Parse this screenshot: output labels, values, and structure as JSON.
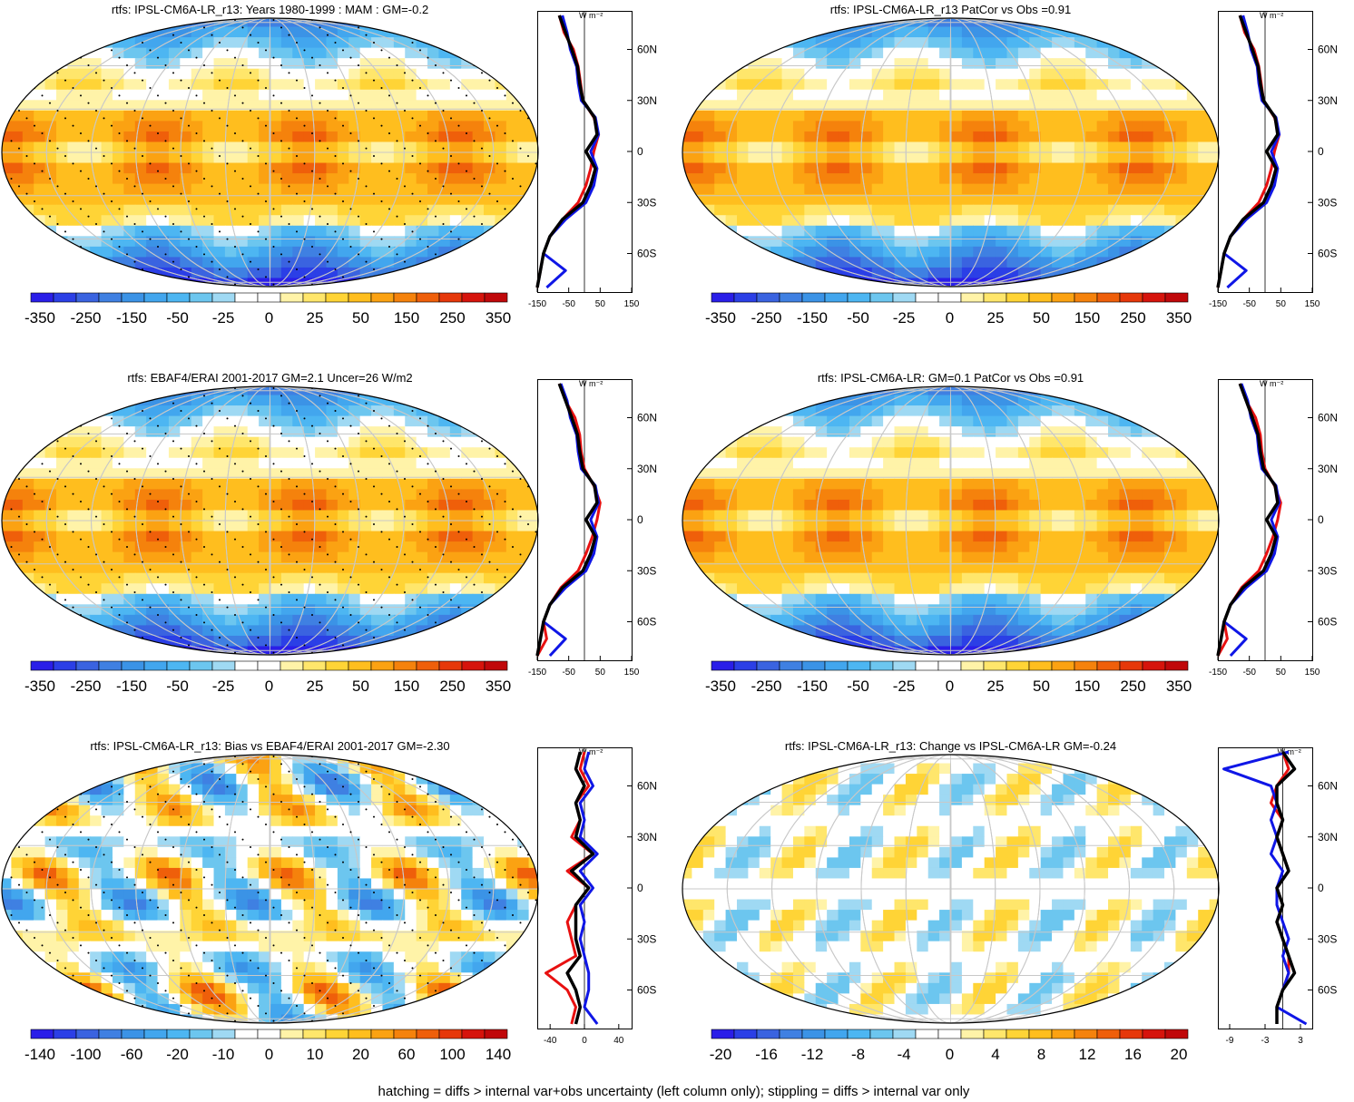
{
  "panels": [
    {
      "title": "rtfs: IPSL-CM6A-LR_r13: Years 1980-1999 : MAM : GM=-0.2",
      "colorbar_labels": [
        "-350",
        "-250",
        "-150",
        "-50",
        "-25",
        "0",
        "25",
        "50",
        "150",
        "250",
        "350"
      ],
      "zonal_xticks": [
        "-150",
        "-50",
        "50",
        "150"
      ],
      "zonal_xlim": [
        -150,
        150
      ],
      "hatched": true
    },
    {
      "title": "rtfs: IPSL-CM6A-LR_r13 PatCor vs Obs =0.91",
      "colorbar_labels": [
        "-350",
        "-250",
        "-150",
        "-50",
        "-25",
        "0",
        "25",
        "50",
        "150",
        "250",
        "350"
      ],
      "zonal_xticks": [
        "-150",
        "-50",
        "50",
        "150"
      ],
      "zonal_xlim": [
        -150,
        150
      ],
      "hatched": false
    },
    {
      "title": "rtfs: EBAF4/ERAI 2001-2017 GM=2.1 Uncer=26 W/m2",
      "colorbar_labels": [
        "-350",
        "-250",
        "-150",
        "-50",
        "-25",
        "0",
        "25",
        "50",
        "150",
        "250",
        "350"
      ],
      "zonal_xticks": [
        "-150",
        "-50",
        "50",
        "150"
      ],
      "zonal_xlim": [
        -150,
        150
      ],
      "hatched": true
    },
    {
      "title": "rtfs: IPSL-CM6A-LR: GM=0.1 PatCor vs Obs =0.91",
      "colorbar_labels": [
        "-350",
        "-250",
        "-150",
        "-50",
        "-25",
        "0",
        "25",
        "50",
        "150",
        "250",
        "350"
      ],
      "zonal_xticks": [
        "-150",
        "-50",
        "50",
        "150"
      ],
      "zonal_xlim": [
        -150,
        150
      ],
      "hatched": false
    },
    {
      "title": "rtfs: IPSL-CM6A-LR_r13: Bias vs EBAF4/ERAI 2001-2017 GM=-2.30",
      "colorbar_labels": [
        "-140",
        "-100",
        "-60",
        "-20",
        "-10",
        "0",
        "10",
        "20",
        "60",
        "100",
        "140"
      ],
      "zonal_xticks": [
        "-40",
        "0",
        "40"
      ],
      "zonal_xlim": [
        -55,
        55
      ],
      "hatched": true
    },
    {
      "title": "rtfs: IPSL-CM6A-LR_r13: Change vs IPSL-CM6A-LR GM=-0.24",
      "colorbar_labels": [
        "-20",
        "-16",
        "-12",
        "-8",
        "-4",
        "0",
        "4",
        "8",
        "12",
        "16",
        "20"
      ],
      "zonal_xticks": [
        "-9",
        "-3",
        "3"
      ],
      "zonal_xlim": [
        -11,
        5
      ],
      "hatched": false
    }
  ],
  "zonal_units": "W m⁻²",
  "lat_labels": [
    "60N",
    "30N",
    "0",
    "30S",
    "60S"
  ],
  "palette": [
    "#2a1ee8",
    "#2b3fe6",
    "#3a63e0",
    "#3f80e2",
    "#3b93e6",
    "#42a6ee",
    "#4db6f2",
    "#6cc6ef",
    "#9fd9f3",
    "#ffffff",
    "#ffffff",
    "#fff3a8",
    "#ffe66b",
    "#ffd436",
    "#ffbe1e",
    "#fba212",
    "#f5820c",
    "#ef5f0a",
    "#e6380a",
    "#d6140c",
    "#c0080a"
  ],
  "series_colors": {
    "obs": "#e81010",
    "model": "#0f16e6",
    "ensemble": "#000000"
  },
  "footnote": "hatching = diffs > internal var+obs uncertainty (left column only); stippling = diffs > internal var only",
  "chart_data": [
    {
      "type": "heatmap",
      "title": "rtfs: IPSL-CM6A-LR_r13: Years 1980-1999 : MAM : GM=-0.2",
      "colorbar_ticks": [
        "-350",
        "-250",
        "-150",
        "-50",
        "-25",
        "0",
        "25",
        "50",
        "150",
        "250",
        "350"
      ],
      "zonal_mean": {
        "lat": [
          80,
          70,
          60,
          50,
          40,
          30,
          20,
          10,
          0,
          -10,
          -20,
          -30,
          -40,
          -50,
          -60,
          -70,
          -80
        ],
        "series": [
          {
            "values": [
              -80,
              -65,
              -35,
              -20,
              -12,
              -5,
              30,
              45,
              30,
              20,
              5,
              -20,
              -70,
              -110,
              -130,
              -140,
              -150
            ]
          },
          {
            "values": [
              -70,
              -55,
              -45,
              -25,
              -20,
              -10,
              35,
              45,
              20,
              40,
              30,
              5,
              -60,
              -110,
              -130,
              -60,
              -120
            ]
          },
          {
            "values": [
              -80,
              -60,
              -40,
              -22,
              -15,
              -5,
              32,
              40,
              5,
              35,
              20,
              -5,
              -70,
              -110,
              -130,
              -140,
              -150
            ]
          }
        ]
      }
    },
    {
      "type": "heatmap",
      "title": "rtfs: IPSL-CM6A-LR_r13 PatCor vs Obs =0.91",
      "colorbar_ticks": [
        "-350",
        "-250",
        "-150",
        "-50",
        "-25",
        "0",
        "25",
        "50",
        "150",
        "250",
        "350"
      ],
      "zonal_mean": {
        "lat": [
          80,
          70,
          60,
          50,
          40,
          30,
          20,
          10,
          0,
          -10,
          -20,
          -30,
          -40,
          -50,
          -60,
          -70,
          -80
        ],
        "series": [
          {
            "values": [
              -80,
              -65,
              -35,
              -20,
              -12,
              -5,
              30,
              45,
              30,
              20,
              5,
              -20,
              -70,
              -110,
              -130,
              -140,
              -150
            ]
          },
          {
            "values": [
              -70,
              -55,
              -45,
              -25,
              -20,
              -10,
              35,
              45,
              20,
              40,
              30,
              5,
              -60,
              -110,
              -130,
              -60,
              -120
            ]
          },
          {
            "values": [
              -80,
              -60,
              -40,
              -22,
              -15,
              -5,
              32,
              40,
              5,
              35,
              20,
              -5,
              -70,
              -110,
              -130,
              -140,
              -150
            ]
          }
        ]
      }
    },
    {
      "type": "heatmap",
      "title": "rtfs: EBAF4/ERAI 2001-2017 GM=2.1 Uncer=26 W/m2",
      "colorbar_ticks": [
        "-350",
        "-250",
        "-150",
        "-50",
        "-25",
        "0",
        "25",
        "50",
        "150",
        "250",
        "350"
      ],
      "zonal_mean": {
        "lat": [
          80,
          70,
          60,
          50,
          40,
          30,
          20,
          10,
          0,
          -10,
          -20,
          -30,
          -40,
          -50,
          -60,
          -70,
          -80
        ],
        "series": [
          {
            "values": [
              -80,
              -60,
              -30,
              -15,
              -10,
              0,
              30,
              50,
              40,
              25,
              5,
              -20,
              -75,
              -110,
              -130,
              -120,
              -150
            ]
          },
          {
            "values": [
              -75,
              -55,
              -45,
              -25,
              -20,
              -10,
              35,
              45,
              20,
              40,
              30,
              5,
              -60,
              -110,
              -130,
              -60,
              -110
            ]
          },
          {
            "values": [
              -80,
              -60,
              -40,
              -22,
              -15,
              -5,
              32,
              40,
              5,
              35,
              20,
              -5,
              -70,
              -110,
              -130,
              -140,
              -150
            ]
          }
        ]
      }
    },
    {
      "type": "heatmap",
      "title": "rtfs: IPSL-CM6A-LR: GM=0.1 PatCor vs Obs =0.91",
      "colorbar_ticks": [
        "-350",
        "-250",
        "-150",
        "-50",
        "-25",
        "0",
        "25",
        "50",
        "150",
        "250",
        "350"
      ],
      "zonal_mean": {
        "lat": [
          80,
          70,
          60,
          50,
          40,
          30,
          20,
          10,
          0,
          -10,
          -20,
          -30,
          -40,
          -50,
          -60,
          -70,
          -80
        ],
        "series": [
          {
            "values": [
              -80,
              -60,
              -30,
              -15,
              -10,
              0,
              30,
              50,
              40,
              25,
              5,
              -20,
              -75,
              -110,
              -130,
              -120,
              -150
            ]
          },
          {
            "values": [
              -75,
              -55,
              -45,
              -25,
              -20,
              -10,
              35,
              45,
              20,
              40,
              30,
              5,
              -60,
              -110,
              -130,
              -60,
              -110
            ]
          },
          {
            "values": [
              -80,
              -60,
              -40,
              -22,
              -15,
              -5,
              32,
              40,
              5,
              35,
              20,
              -5,
              -70,
              -110,
              -130,
              -140,
              -150
            ]
          }
        ]
      }
    },
    {
      "type": "heatmap",
      "title": "rtfs: IPSL-CM6A-LR_r13: Bias vs EBAF4/ERAI 2001-2017 GM=-2.30",
      "colorbar_ticks": [
        "-140",
        "-100",
        "-60",
        "-20",
        "-10",
        "0",
        "10",
        "20",
        "60",
        "100",
        "140"
      ],
      "zonal_mean": {
        "lat": [
          80,
          70,
          60,
          50,
          40,
          30,
          20,
          10,
          0,
          -10,
          -20,
          -30,
          -40,
          -50,
          -60,
          -70,
          -80
        ],
        "series": [
          {
            "values": [
              0,
              -5,
              5,
              -10,
              -5,
              -15,
              10,
              -20,
              5,
              -10,
              -20,
              -15,
              -10,
              -45,
              -20,
              -10,
              -15
            ]
          },
          {
            "values": [
              5,
              0,
              10,
              -5,
              0,
              -5,
              15,
              -5,
              10,
              -5,
              0,
              -5,
              0,
              5,
              5,
              0,
              15
            ]
          },
          {
            "values": [
              -5,
              -10,
              0,
              -10,
              -5,
              -10,
              10,
              -15,
              5,
              -10,
              -10,
              -10,
              -5,
              -20,
              -10,
              -5,
              -10
            ]
          }
        ]
      }
    },
    {
      "type": "heatmap",
      "title": "rtfs: IPSL-CM6A-LR_r13: Change vs IPSL-CM6A-LR GM=-0.24",
      "colorbar_ticks": [
        "-20",
        "-16",
        "-12",
        "-8",
        "-4",
        "0",
        "4",
        "8",
        "12",
        "16",
        "20"
      ],
      "zonal_mean": {
        "lat": [
          80,
          70,
          60,
          50,
          40,
          30,
          20,
          10,
          0,
          -10,
          -20,
          -30,
          -40,
          -50,
          -60,
          -70,
          -80
        ],
        "series": [
          {
            "values": [
              0,
              1,
              -1,
              -2,
              0,
              -1,
              0,
              1,
              -1,
              0,
              -1,
              0,
              1,
              1,
              0,
              -1,
              -1
            ]
          },
          {
            "values": [
              1,
              -10,
              -2,
              -1,
              -2,
              -1,
              -2,
              0,
              -1,
              -1,
              0,
              1,
              0,
              1,
              0,
              -1,
              4
            ]
          },
          {
            "values": [
              0,
              2,
              -1,
              -1,
              0,
              -1,
              0,
              1,
              -1,
              0,
              -1,
              0,
              1,
              2,
              0,
              -1,
              -1
            ]
          }
        ]
      }
    }
  ]
}
